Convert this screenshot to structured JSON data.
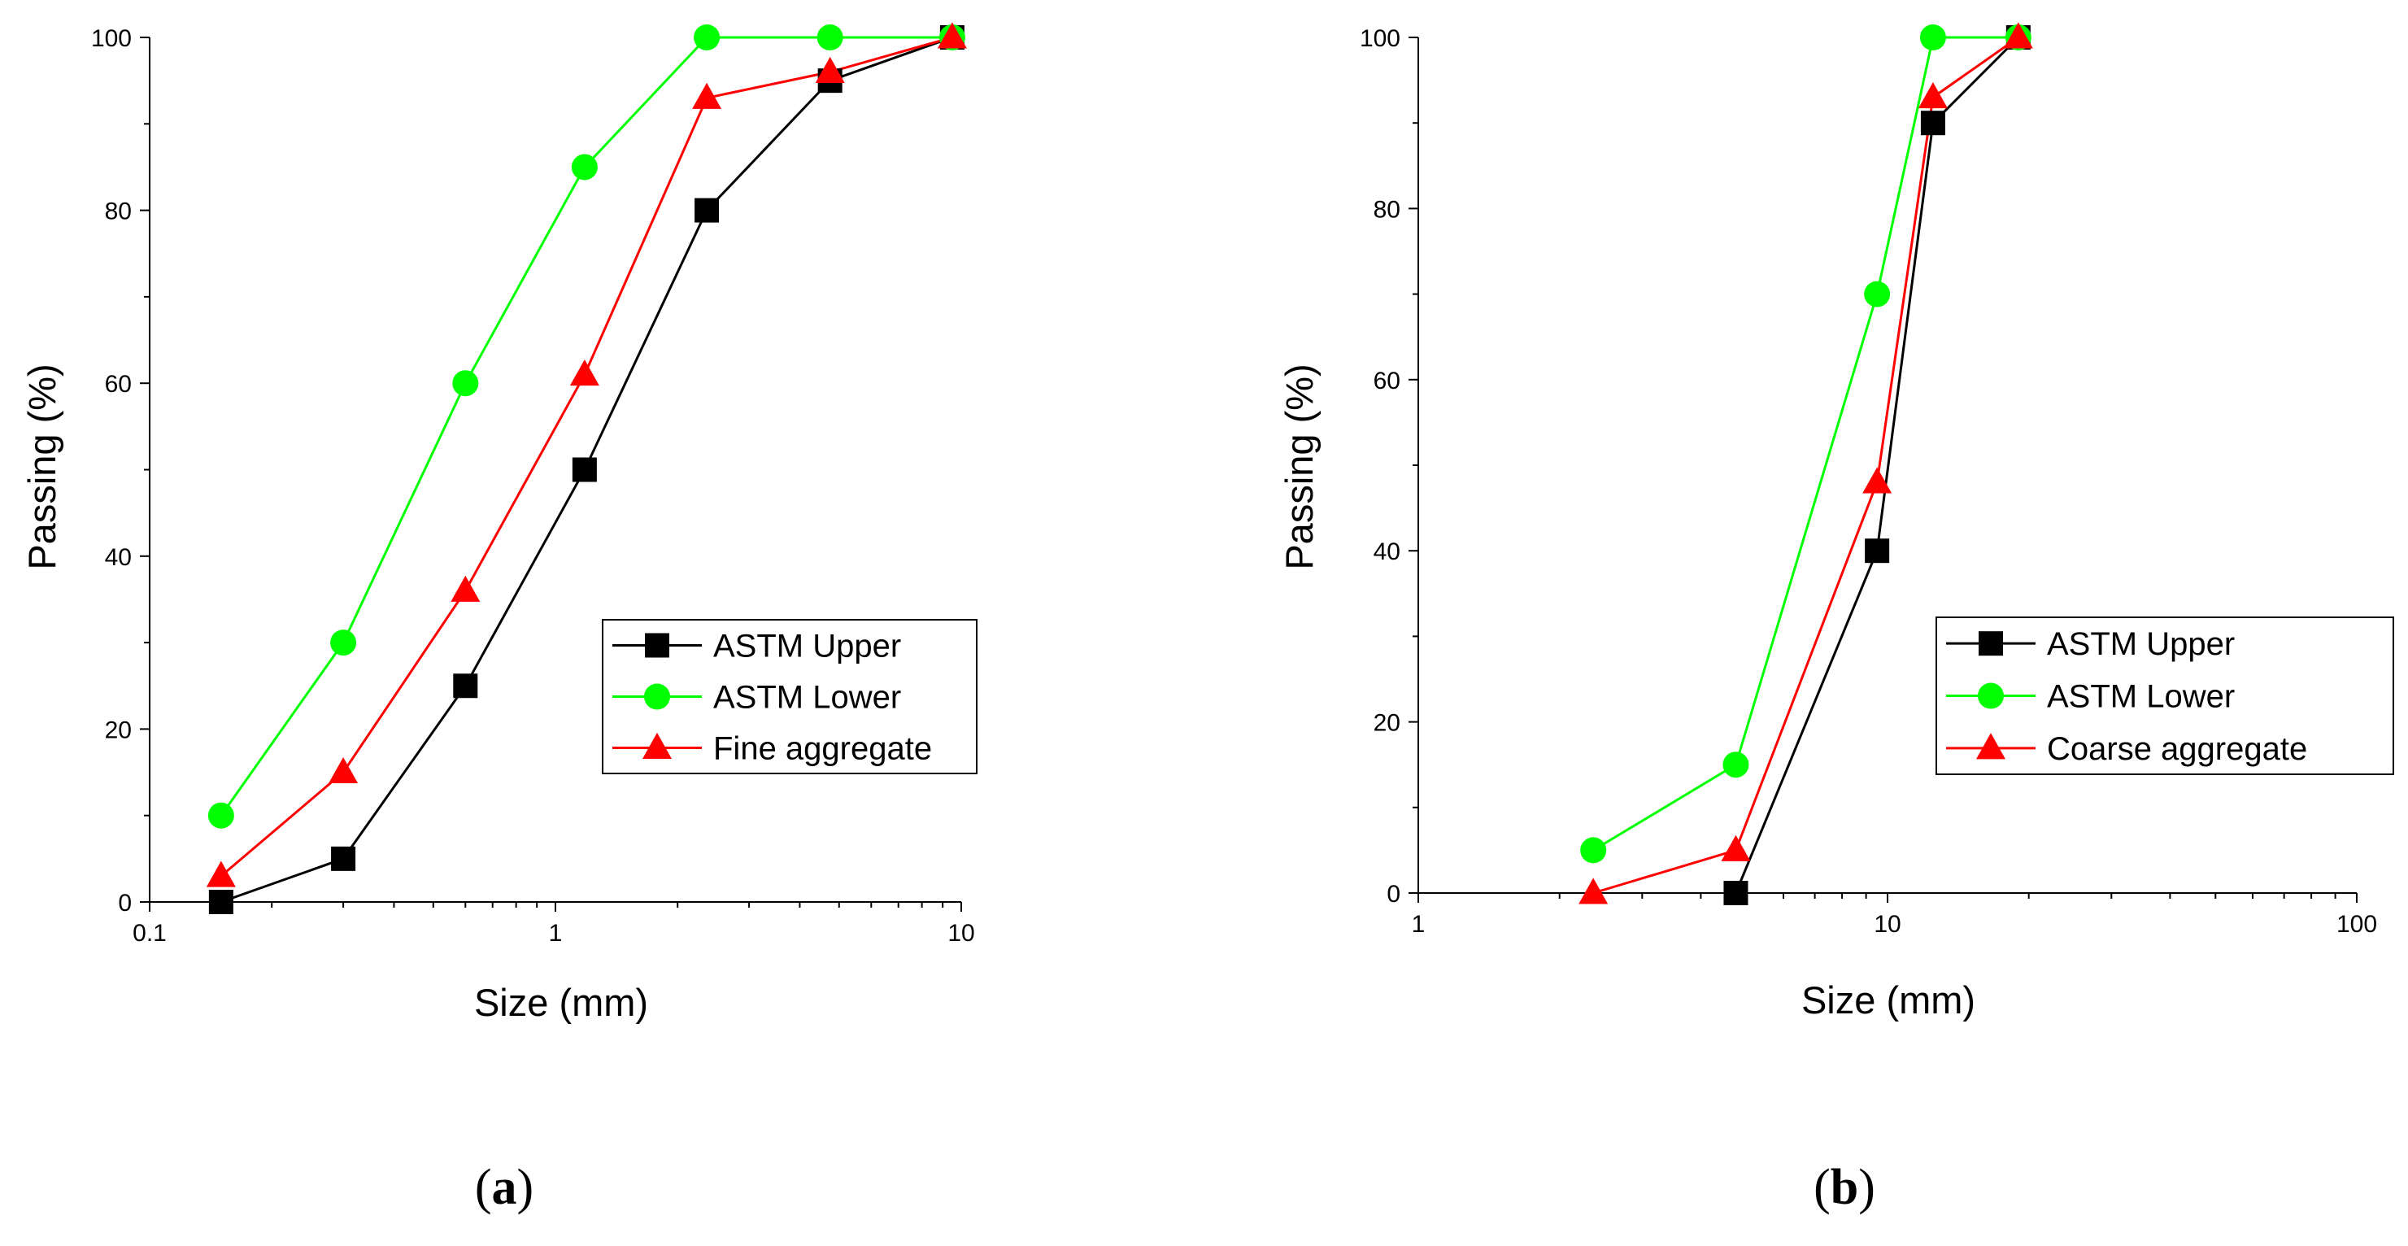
{
  "chart_data": [
    {
      "type": "line",
      "panel_label": {
        "open": "(",
        "letter": "a",
        "close": ")"
      },
      "title": "",
      "xlabel": "Size (mm)",
      "ylabel": "Passing (%)",
      "xscale": "log",
      "xlim": [
        0.1,
        10
      ],
      "ylim": [
        0,
        100
      ],
      "xticks": [
        "0.1",
        "1",
        "10"
      ],
      "yticks": [
        "0",
        "20",
        "40",
        "60",
        "80",
        "100"
      ],
      "grid": false,
      "legend_position": "right",
      "series": [
        {
          "name": "ASTM Upper",
          "color": "#000000",
          "marker": "square",
          "x": [
            0.15,
            0.3,
            0.6,
            1.18,
            2.36,
            4.75,
            9.5
          ],
          "y": [
            0,
            5,
            25,
            50,
            80,
            95,
            100
          ]
        },
        {
          "name": "ASTM Lower",
          "color": "#00ff00",
          "marker": "circle",
          "x": [
            0.15,
            0.3,
            0.6,
            1.18,
            2.36,
            4.75,
            9.5
          ],
          "y": [
            10,
            30,
            60,
            85,
            100,
            100,
            100
          ]
        },
        {
          "name": "Fine aggregate",
          "color": "#ff0000",
          "marker": "triangle",
          "x": [
            0.15,
            0.3,
            0.6,
            1.18,
            2.36,
            4.75,
            9.5
          ],
          "y": [
            3,
            15,
            36,
            61,
            93,
            96,
            100
          ]
        }
      ]
    },
    {
      "type": "line",
      "panel_label": {
        "open": "(",
        "letter": "b",
        "close": ")"
      },
      "title": "",
      "xlabel": "Size (mm)",
      "ylabel": "Passing (%)",
      "xscale": "log",
      "xlim": [
        1,
        100
      ],
      "ylim": [
        0,
        100
      ],
      "xticks": [
        "1",
        "10",
        "100"
      ],
      "yticks": [
        "0",
        "20",
        "40",
        "60",
        "80",
        "100"
      ],
      "grid": false,
      "legend_position": "right",
      "series": [
        {
          "name": "ASTM Upper",
          "color": "#000000",
          "marker": "square",
          "x": [
            4.75,
            9.5,
            12.5,
            19
          ],
          "y": [
            0,
            40,
            90,
            100
          ]
        },
        {
          "name": "ASTM Lower",
          "color": "#00ff00",
          "marker": "circle",
          "x": [
            2.36,
            4.75,
            9.5,
            12.5,
            19
          ],
          "y": [
            5,
            15,
            70,
            100,
            100
          ]
        },
        {
          "name": "Coarse aggregate",
          "color": "#ff0000",
          "marker": "triangle",
          "x": [
            2.36,
            4.75,
            9.5,
            12.5,
            19
          ],
          "y": [
            0,
            5,
            48,
            93,
            100
          ]
        }
      ]
    }
  ]
}
